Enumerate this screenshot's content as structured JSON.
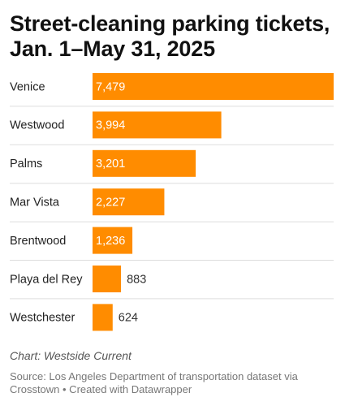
{
  "chart_data": {
    "type": "bar",
    "orientation": "horizontal",
    "title": "Street-cleaning parking tickets, Jan. 1–May 31, 2025",
    "categories": [
      "Venice",
      "Westwood",
      "Palms",
      "Mar Vista",
      "Brentwood",
      "Playa del Rey",
      "Westchester"
    ],
    "values": [
      7479,
      3994,
      3201,
      2227,
      1236,
      883,
      624
    ],
    "value_labels": [
      "7,479",
      "3,994",
      "3,201",
      "2,227",
      "1,236",
      "883",
      "624"
    ],
    "xlim": [
      0,
      7479
    ],
    "grid": false,
    "legend": "none",
    "bar_color": "#ff8c00"
  },
  "footer": {
    "credit": "Chart: Westside Current",
    "source": "Source: Los Angeles Department of transportation dataset via Crosstown • Created with Datawrapper"
  },
  "colors": {
    "bar": "#ff8c00",
    "label_inside": "#ffffff",
    "label_outside": "#333333",
    "divider": "#dddddd"
  }
}
